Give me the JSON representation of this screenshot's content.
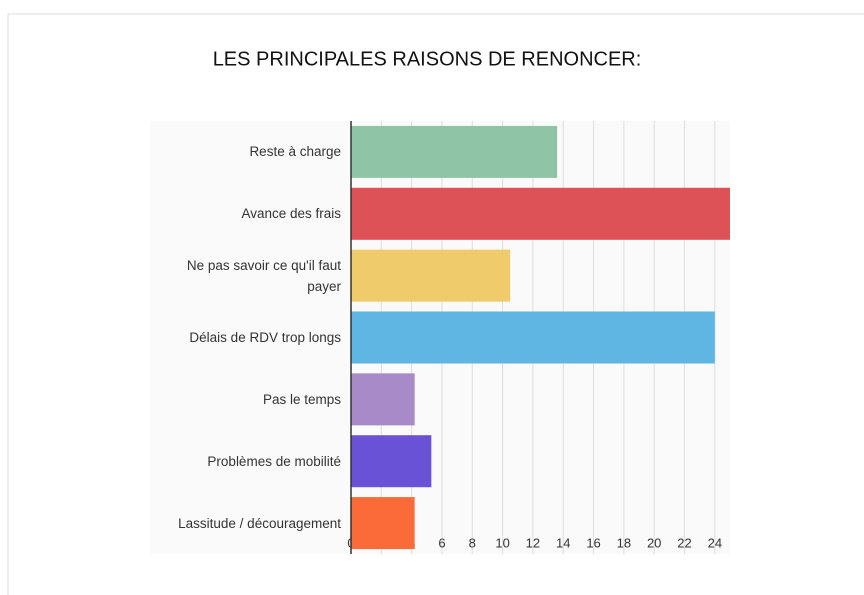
{
  "chart_data": {
    "type": "barh",
    "title": "LES PRINCIPALES RAISONS DE RENONCER:",
    "categories": [
      "Reste à charge",
      "Avance des frais",
      "Ne pas savoir ce qu'il faut payer",
      "Délais de RDV trop longs",
      "Pas le temps",
      "Problèmes de mobilité",
      "Lassitude / découragement"
    ],
    "values": [
      13.6,
      25,
      10.5,
      24,
      4.2,
      5.3,
      4.2
    ],
    "colors": [
      "#8fc4a6",
      "#dc5257",
      "#efcb6b",
      "#5fb6e3",
      "#a98ac8",
      "#6a52d6",
      "#fb6b3a"
    ],
    "xlim": [
      0,
      25
    ],
    "xticks": [
      0,
      2,
      4,
      6,
      8,
      10,
      12,
      14,
      16,
      18,
      20,
      22,
      24
    ],
    "grid": true
  }
}
